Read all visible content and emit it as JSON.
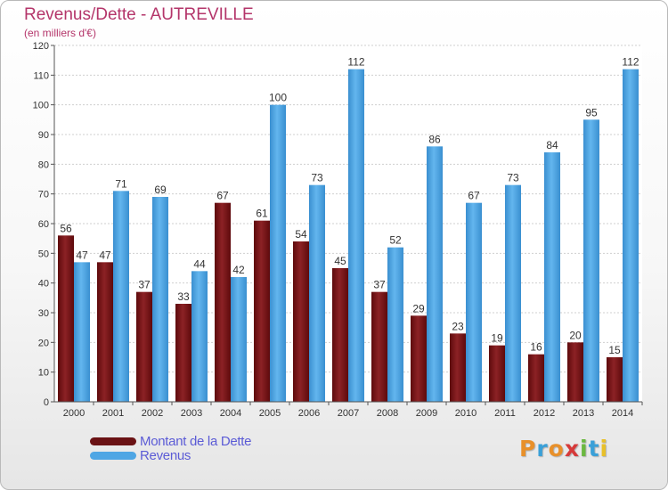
{
  "chart_data": {
    "type": "bar",
    "title": "Revenus/Dette - AUTREVILLE",
    "subtitle": "(en milliers d'€)",
    "categories": [
      "2000",
      "2001",
      "2002",
      "2003",
      "2004",
      "2005",
      "2006",
      "2007",
      "2008",
      "2009",
      "2010",
      "2011",
      "2012",
      "2013",
      "2014"
    ],
    "series": [
      {
        "name": "Montant de la Dette",
        "color": "#7a1518",
        "values": [
          56,
          47,
          37,
          33,
          67,
          61,
          54,
          45,
          37,
          29,
          23,
          19,
          16,
          20,
          15
        ]
      },
      {
        "name": "Revenus",
        "color": "#4fa6e4",
        "values": [
          47,
          71,
          69,
          44,
          42,
          100,
          73,
          112,
          52,
          86,
          67,
          73,
          84,
          95,
          112
        ]
      }
    ],
    "ylim": [
      0,
      120
    ],
    "yticks": [
      0,
      10,
      20,
      30,
      40,
      50,
      60,
      70,
      80,
      90,
      100,
      110,
      120
    ],
    "grid": true,
    "legend_position": "bottom-left"
  },
  "logo": {
    "letters": [
      {
        "char": "P",
        "color": "#e8902a"
      },
      {
        "char": "r",
        "color": "#3aa0d8"
      },
      {
        "char": "o",
        "color": "#e8902a"
      },
      {
        "char": "x",
        "color": "#d63a3a"
      },
      {
        "char": "i",
        "color": "#6bb840"
      },
      {
        "char": "t",
        "color": "#3aa0d8"
      },
      {
        "char": "i",
        "color": "#e8c02a"
      }
    ]
  }
}
